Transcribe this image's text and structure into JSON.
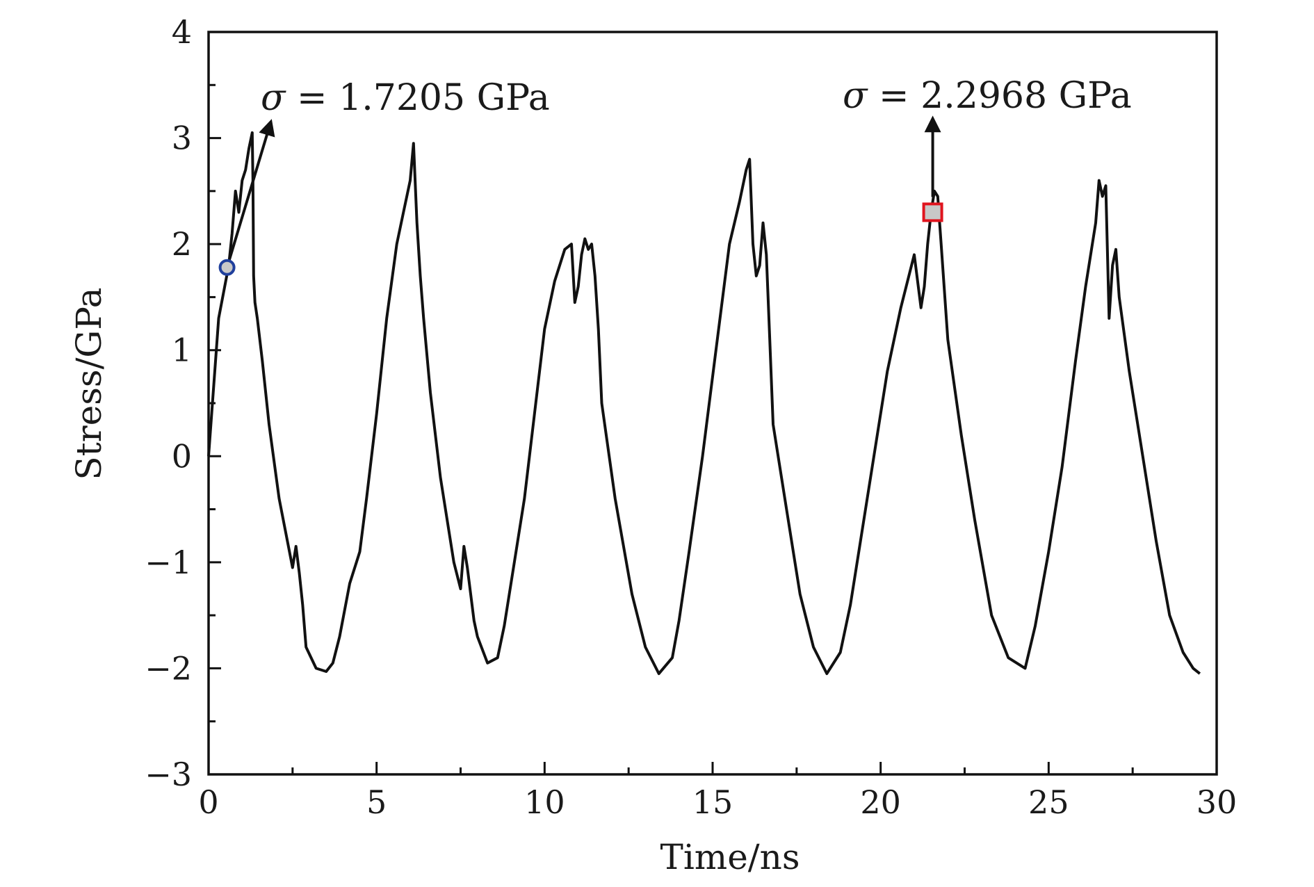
{
  "chart_data": {
    "type": "line",
    "xlabel": "Time/ns",
    "ylabel": "Stress/GPa",
    "xlim": [
      0,
      30
    ],
    "ylim": [
      -3,
      4
    ],
    "x_ticks": [
      0,
      5,
      10,
      15,
      20,
      25,
      30
    ],
    "y_ticks": [
      -3,
      -2,
      -1,
      0,
      1,
      2,
      3,
      4
    ],
    "x_tick_labels": [
      "0",
      "5",
      "10",
      "15",
      "20",
      "25",
      "30"
    ],
    "y_tick_labels": [
      "−3",
      "−2",
      "−1",
      "0",
      "1",
      "2",
      "3",
      "4"
    ],
    "grid": false,
    "legend": false,
    "colors": {
      "line": "#111111",
      "circle_marker_edge": "#1f3f9c",
      "square_marker_edge": "#e0141e",
      "marker_fill": "#c8c8c8"
    },
    "series": [
      {
        "x": [
          0.0,
          0.3,
          0.6,
          0.7,
          0.8,
          0.9,
          1.0,
          1.1,
          1.2,
          1.3,
          1.32,
          1.34,
          1.38,
          1.45,
          1.6,
          1.8,
          2.1,
          2.5,
          2.6,
          2.7,
          2.8,
          2.9,
          3.2,
          3.5,
          3.7,
          3.9,
          4.2,
          4.4,
          4.5,
          4.7,
          5.0,
          5.3,
          5.6,
          5.8,
          6.0,
          6.1,
          6.2,
          6.3,
          6.4,
          6.6,
          6.9,
          7.3,
          7.5,
          7.6,
          7.7,
          7.8,
          7.9,
          8.0,
          8.3,
          8.6,
          8.8,
          9.1,
          9.4,
          9.7,
          10.0,
          10.3,
          10.6,
          10.8,
          10.9,
          11.0,
          11.1,
          11.2,
          11.3,
          11.4,
          11.5,
          11.6,
          11.7,
          12.1,
          12.6,
          13.0,
          13.4,
          13.8,
          14.0,
          14.3,
          14.7,
          15.1,
          15.5,
          15.8,
          16.0,
          16.1,
          16.2,
          16.3,
          16.4,
          16.5,
          16.6,
          16.7,
          16.8,
          17.2,
          17.6,
          18.0,
          18.4,
          18.8,
          19.1,
          19.4,
          19.8,
          20.2,
          20.6,
          21.0,
          21.2,
          21.3,
          21.4,
          21.5,
          21.6,
          21.7,
          21.8,
          22.0,
          22.4,
          22.8,
          23.3,
          23.8,
          24.3,
          24.6,
          25.0,
          25.4,
          25.8,
          26.1,
          26.4,
          26.5,
          26.6,
          26.7,
          26.8,
          26.9,
          27.0,
          27.1,
          27.4,
          27.8,
          28.2,
          28.6,
          29.0,
          29.3,
          29.5
        ],
        "y": [
          0.0,
          1.3,
          1.8,
          2.1,
          2.5,
          2.3,
          2.6,
          2.7,
          2.9,
          3.05,
          2.6,
          1.7,
          1.45,
          1.3,
          0.9,
          0.3,
          -0.4,
          -1.05,
          -0.85,
          -1.1,
          -1.4,
          -1.8,
          -2.0,
          -2.03,
          -1.95,
          -1.7,
          -1.2,
          -1.0,
          -0.9,
          -0.4,
          0.4,
          1.3,
          2.0,
          2.3,
          2.6,
          2.95,
          2.2,
          1.7,
          1.3,
          0.6,
          -0.2,
          -1.0,
          -1.25,
          -0.85,
          -1.05,
          -1.3,
          -1.55,
          -1.7,
          -1.95,
          -1.9,
          -1.6,
          -1.0,
          -0.4,
          0.4,
          1.2,
          1.65,
          1.95,
          2.0,
          1.45,
          1.6,
          1.9,
          2.05,
          1.95,
          2.0,
          1.7,
          1.2,
          0.5,
          -0.4,
          -1.3,
          -1.8,
          -2.05,
          -1.9,
          -1.55,
          -0.9,
          0.0,
          1.0,
          2.0,
          2.4,
          2.7,
          2.8,
          2.0,
          1.7,
          1.8,
          2.2,
          1.9,
          1.1,
          0.3,
          -0.5,
          -1.3,
          -1.8,
          -2.05,
          -1.85,
          -1.4,
          -0.8,
          0.0,
          0.8,
          1.4,
          1.9,
          1.4,
          1.6,
          2.0,
          2.3,
          2.5,
          2.45,
          2.0,
          1.1,
          0.2,
          -0.6,
          -1.5,
          -1.9,
          -2.0,
          -1.6,
          -0.9,
          -0.1,
          0.9,
          1.6,
          2.2,
          2.6,
          2.45,
          2.55,
          1.3,
          1.8,
          1.95,
          1.5,
          0.8,
          0.0,
          -0.8,
          -1.5,
          -1.85,
          -2.0,
          -2.05
        ]
      }
    ],
    "annotations": [
      {
        "sigma": "σ",
        "eq": " = 1.7205 GPa",
        "marker": "circle",
        "x": 0.55,
        "y": 1.78
      },
      {
        "sigma": "σ",
        "eq": " = 2.2968 GPa",
        "marker": "square",
        "x": 21.55,
        "y": 2.3
      }
    ]
  }
}
